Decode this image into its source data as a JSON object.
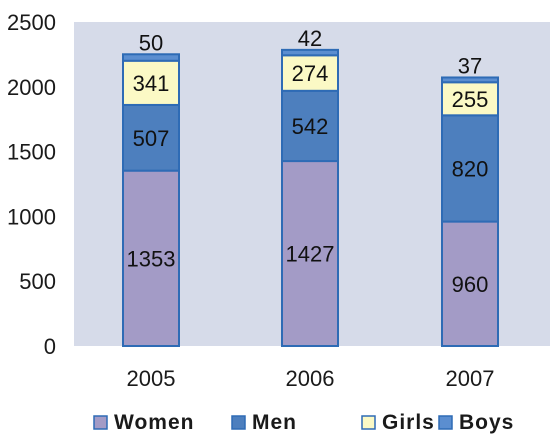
{
  "chart_data": {
    "type": "bar",
    "stacked": true,
    "categories": [
      "2005",
      "2006",
      "2007"
    ],
    "series": [
      {
        "name": "Women",
        "values": [
          1353,
          1427,
          960
        ],
        "color": "#a39bc6"
      },
      {
        "name": "Men",
        "values": [
          507,
          542,
          820
        ],
        "color": "#4d7fbe"
      },
      {
        "name": "Girls",
        "values": [
          341,
          274,
          255
        ],
        "color": "#fbf9c5"
      },
      {
        "name": "Boys",
        "values": [
          50,
          42,
          37
        ],
        "color": "#5b8ed0"
      }
    ],
    "title": "",
    "xlabel": "",
    "ylabel": "",
    "ylim": [
      0,
      2500
    ],
    "yticks": [
      0,
      500,
      1000,
      1500,
      2000,
      2500
    ],
    "grid": false,
    "legend_position": "bottom",
    "plot_background": "#d6dbe9",
    "bar_outline_color": "#2e6bb5"
  }
}
